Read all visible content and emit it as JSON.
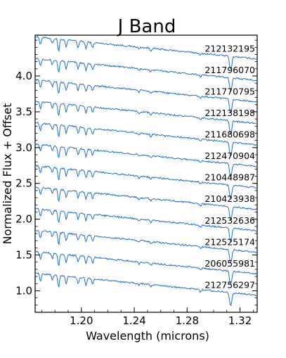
{
  "chart_data": {
    "type": "line",
    "title": "J Band",
    "xlabel": "Wavelength (microns)",
    "ylabel": "Normalized Flux + Offset",
    "xlim": [
      1.165,
      1.333
    ],
    "ylim": [
      0.7,
      4.57
    ],
    "x_ticks": [
      {
        "value": 1.2,
        "label": "1.20"
      },
      {
        "value": 1.24,
        "label": "1.24"
      },
      {
        "value": 1.28,
        "label": "1.28"
      },
      {
        "value": 1.32,
        "label": "1.32"
      }
    ],
    "y_ticks": [
      {
        "value": 1.0,
        "label": "1.0"
      },
      {
        "value": 1.5,
        "label": "1.5"
      },
      {
        "value": 2.0,
        "label": "2.0"
      },
      {
        "value": 2.5,
        "label": "2.5"
      },
      {
        "value": 3.0,
        "label": "3.0"
      },
      {
        "value": 3.5,
        "label": "3.5"
      },
      {
        "value": 4.0,
        "label": "4.0"
      }
    ],
    "grid": false,
    "line_color": "#1f6fd1",
    "absorption_lines": [
      1.169,
      1.178,
      1.1828,
      1.1885,
      1.1975,
      1.2035,
      1.2085,
      1.2435,
      1.2525,
      1.29,
      1.3125,
      1.3135
    ],
    "series": [
      {
        "name": "212132195",
        "offset": 4.4,
        "slope": -2.05
      },
      {
        "name": "211796070",
        "offset": 4.1,
        "slope": -2.05
      },
      {
        "name": "211770795",
        "offset": 3.8,
        "slope": -2.05
      },
      {
        "name": "212138198",
        "offset": 3.5,
        "slope": -2.05
      },
      {
        "name": "211680698",
        "offset": 3.2,
        "slope": -2.05
      },
      {
        "name": "212470904",
        "offset": 2.9,
        "slope": -2.05
      },
      {
        "name": "210448987",
        "offset": 2.6,
        "slope": -2.05
      },
      {
        "name": "210423938",
        "offset": 2.3,
        "slope": -2.05
      },
      {
        "name": "212532636",
        "offset": 2.0,
        "slope": -2.05
      },
      {
        "name": "212525174",
        "offset": 1.7,
        "slope": -2.05
      },
      {
        "name": "206055981",
        "offset": 1.4,
        "slope": -2.05
      },
      {
        "name": "212756297",
        "offset": 1.1,
        "slope": -2.05
      }
    ]
  }
}
